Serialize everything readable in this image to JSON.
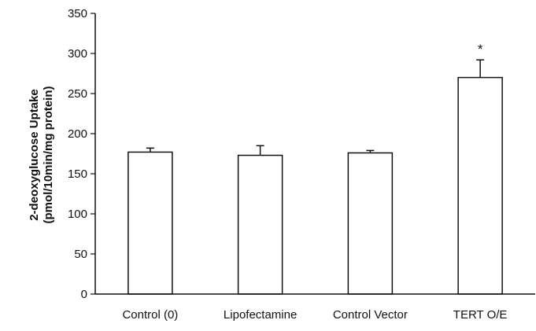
{
  "chart_data": {
    "type": "bar",
    "categories": [
      "Control (0)",
      "Lipofectamine",
      "Control Vector",
      "TERT O/E"
    ],
    "values": [
      177,
      173,
      176,
      270
    ],
    "errors": [
      5,
      12,
      3,
      22
    ],
    "annotations": [
      {
        "category": "TERT O/E",
        "text": "*"
      }
    ],
    "title": "",
    "xlabel": "",
    "ylabel": [
      "2-deoxyglucose Uptake",
      "(pmol/10min/mg protein)"
    ],
    "ylim": [
      0,
      350
    ],
    "yticks": [
      0,
      50,
      100,
      150,
      200,
      250,
      300,
      350
    ],
    "grid": false,
    "legend": "none",
    "bar_fill": "#ffffff",
    "bar_stroke": "#111111"
  }
}
